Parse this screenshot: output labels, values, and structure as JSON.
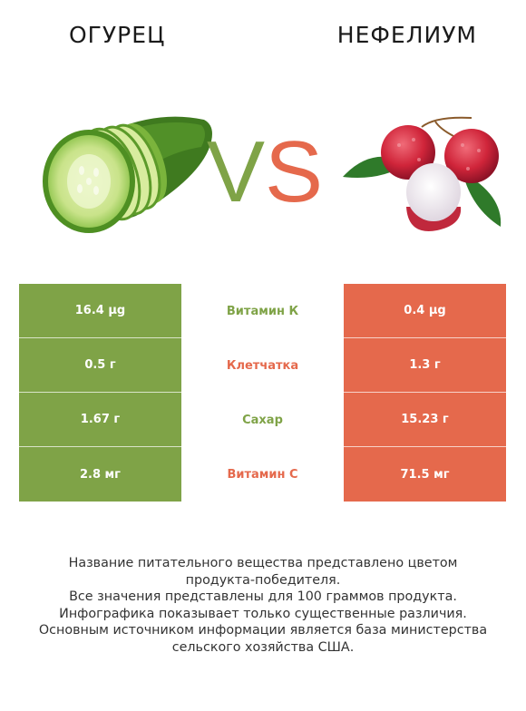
{
  "left_product": {
    "name": "ОГУРЕЦ",
    "color": "#7fa347"
  },
  "right_product": {
    "name": "НЕФЕЛИУМ",
    "color": "#e5694c"
  },
  "vs": {
    "v": "V",
    "s": "S"
  },
  "rows": [
    {
      "left": "16.4 µg",
      "nutrient": "Витамин К",
      "right": "0.4 µg",
      "winner": "left"
    },
    {
      "left": "0.5 г",
      "nutrient": "Клетчатка",
      "right": "1.3 г",
      "winner": "right"
    },
    {
      "left": "1.67 г",
      "nutrient": "Сахар",
      "right": "15.23 г",
      "winner": "left"
    },
    {
      "left": "2.8 мг",
      "nutrient": "Витамин С",
      "right": "71.5 мг",
      "winner": "right"
    }
  ],
  "footer": {
    "line1": "Название питательного вещества представлено цветом",
    "line2": "продукта-победителя.",
    "line3": "Все значения представлены для 100 граммов продукта.",
    "line4": "Инфографика показывает только существенные различия.",
    "line5": "Основным источником информации является база министерства",
    "line6": "сельского хозяйства США."
  }
}
